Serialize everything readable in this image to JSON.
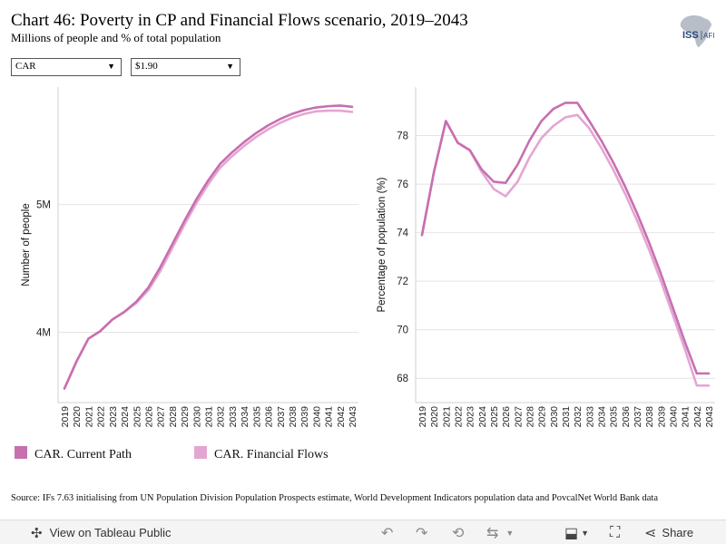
{
  "header": {
    "title": "Chart 46: Poverty in CP and Financial Flows scenario, 2019–2043",
    "subtitle": "Millions of people and % of total population"
  },
  "logo": {
    "icon": "africa-map-icon",
    "text": "ISS",
    "subtext": "AFI"
  },
  "filters": {
    "country": {
      "value": "CAR"
    },
    "poverty_line": {
      "value": "$1.90"
    }
  },
  "colors": {
    "current_path": "#c86fb0",
    "financial_flows": "#e3a6d2"
  },
  "chart_data": [
    {
      "type": "line",
      "xlabel": "",
      "ylabel": "Number of people",
      "x": [
        "2019",
        "2020",
        "2021",
        "2022",
        "2023",
        "2024",
        "2025",
        "2026",
        "2027",
        "2028",
        "2029",
        "2030",
        "2031",
        "2032",
        "2033",
        "2034",
        "2035",
        "2036",
        "2037",
        "2038",
        "2039",
        "2040",
        "2041",
        "2042",
        "2043"
      ],
      "ylim": [
        3.45,
        5.92
      ],
      "yticks": [
        4.0,
        5.0
      ],
      "ytick_labels": [
        "4M",
        "5M"
      ],
      "grid": "horizontal",
      "series": [
        {
          "name": "CAR. Current Path",
          "values": [
            3.56,
            3.77,
            3.95,
            4.01,
            4.1,
            4.16,
            4.24,
            4.35,
            4.51,
            4.69,
            4.87,
            5.04,
            5.19,
            5.32,
            5.41,
            5.49,
            5.56,
            5.62,
            5.67,
            5.71,
            5.74,
            5.76,
            5.77,
            5.775,
            5.765
          ]
        },
        {
          "name": "CAR. Financial Flows",
          "values": [
            3.56,
            3.77,
            3.95,
            4.01,
            4.1,
            4.16,
            4.23,
            4.33,
            4.48,
            4.66,
            4.84,
            5.01,
            5.16,
            5.29,
            5.38,
            5.46,
            5.53,
            5.59,
            5.64,
            5.68,
            5.71,
            5.73,
            5.735,
            5.735,
            5.725
          ]
        }
      ]
    },
    {
      "type": "line",
      "xlabel": "",
      "ylabel": "Percentage of population (%)",
      "x": [
        "2019",
        "2020",
        "2021",
        "2022",
        "2023",
        "2024",
        "2025",
        "2026",
        "2027",
        "2028",
        "2029",
        "2030",
        "2031",
        "2032",
        "2033",
        "2034",
        "2035",
        "2036",
        "2037",
        "2038",
        "2039",
        "2040",
        "2041",
        "2042",
        "2043"
      ],
      "ylim": [
        67.0,
        80.0
      ],
      "yticks": [
        68,
        70,
        72,
        74,
        76,
        78
      ],
      "ytick_labels": [
        "68",
        "70",
        "72",
        "74",
        "76",
        "78"
      ],
      "grid": "horizontal",
      "series": [
        {
          "name": "CAR. Current Path",
          "values": [
            73.9,
            76.5,
            78.6,
            77.7,
            77.4,
            76.6,
            76.1,
            76.05,
            76.8,
            77.8,
            78.6,
            79.1,
            79.35,
            79.35,
            78.6,
            77.8,
            76.9,
            75.9,
            74.8,
            73.6,
            72.3,
            70.9,
            69.5,
            68.2,
            68.2
          ]
        },
        {
          "name": "CAR. Financial Flows",
          "values": [
            73.9,
            76.5,
            78.6,
            77.7,
            77.4,
            76.5,
            75.8,
            75.5,
            76.1,
            77.1,
            77.9,
            78.4,
            78.75,
            78.85,
            78.3,
            77.5,
            76.6,
            75.6,
            74.5,
            73.3,
            72.0,
            70.6,
            69.2,
            67.7,
            67.7
          ]
        }
      ]
    }
  ],
  "legend": [
    {
      "label": "CAR. Current Path"
    },
    {
      "label": "CAR. Financial Flows"
    }
  ],
  "source": "Source: IFs 7.63 initialising from UN Population Division Population Prospects estimate, World Development Indicators population data and PovcalNet World Bank data",
  "toolbar": {
    "view_label": "View on Tableau Public",
    "share_label": "Share",
    "icons": [
      "tableau-logo-icon",
      "undo-icon",
      "redo-icon",
      "revert-icon",
      "refresh-icon",
      "download-icon",
      "fullscreen-icon",
      "share-icon"
    ]
  }
}
